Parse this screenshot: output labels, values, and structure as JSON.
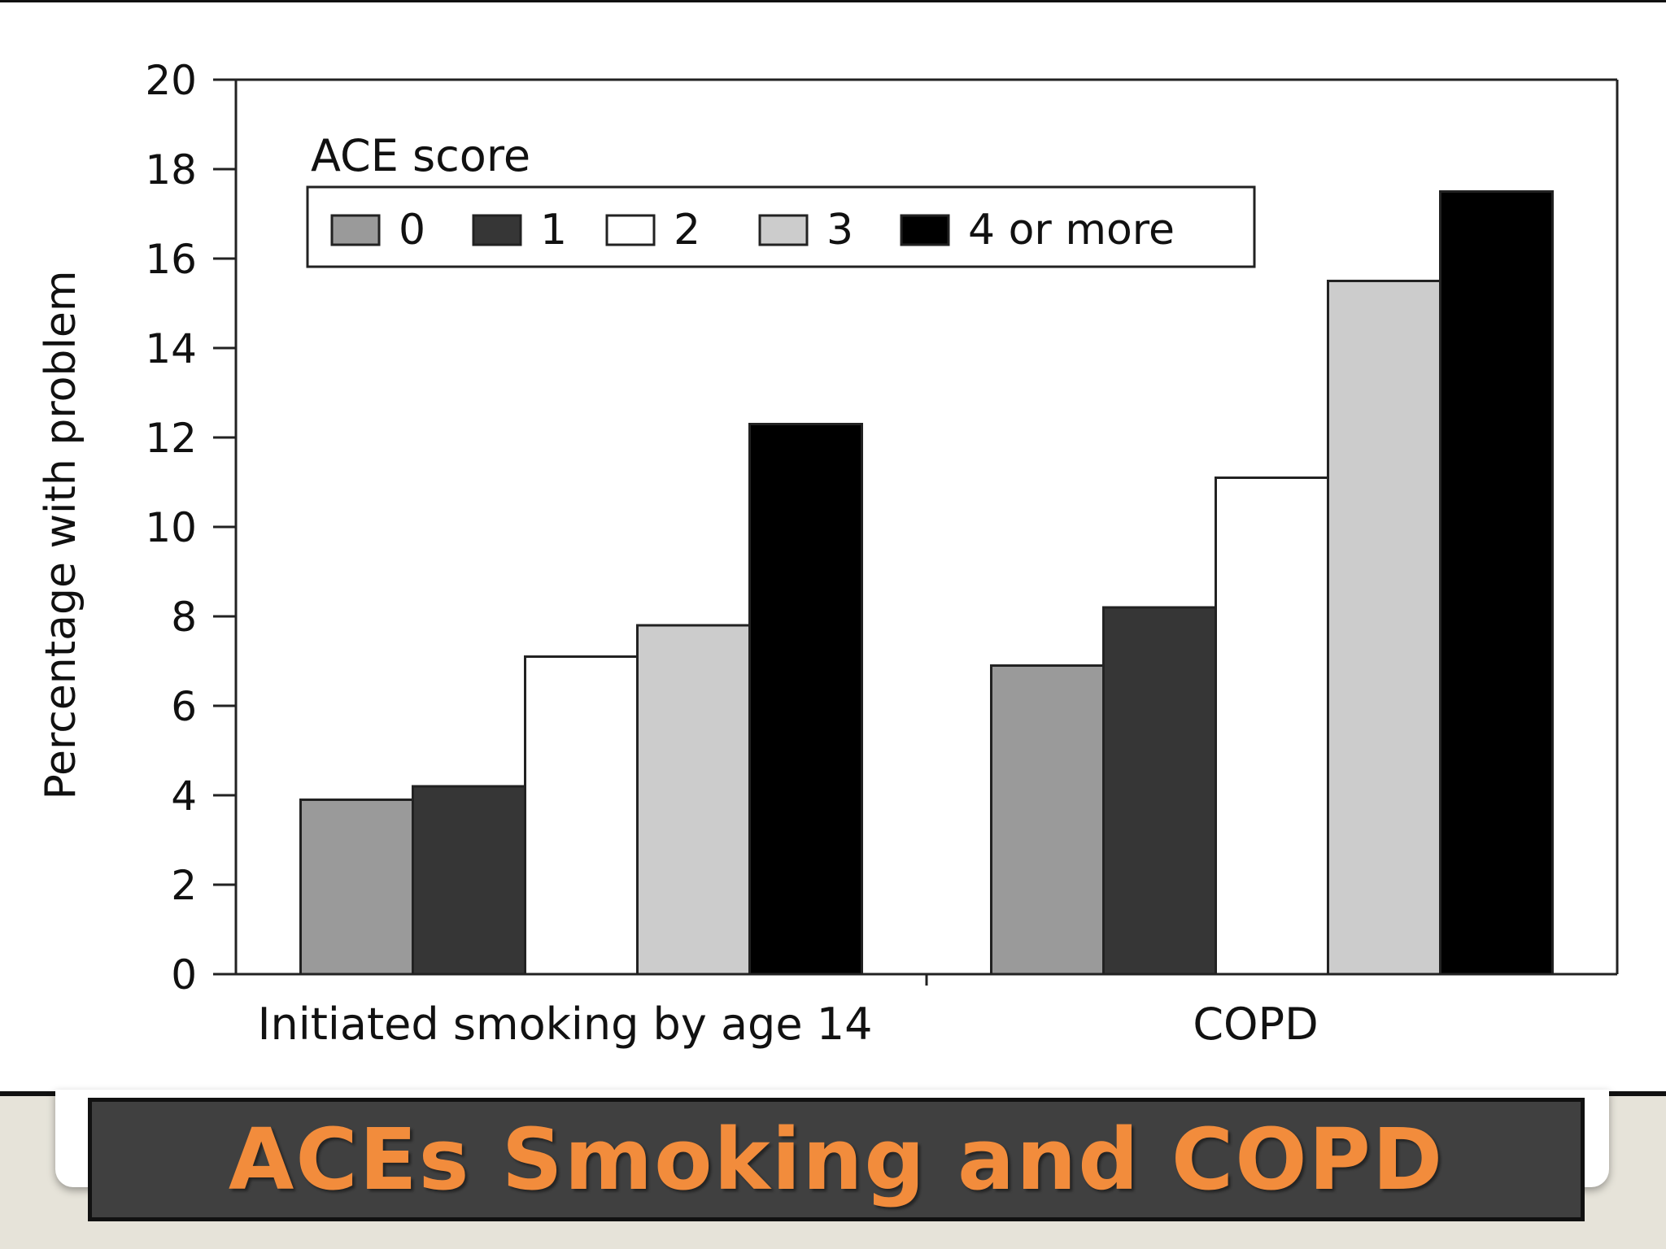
{
  "slide": {
    "title": "ACEs Smoking and COPD"
  },
  "colors": {
    "title_text": "#f28c3c",
    "banner_bg": "#404040",
    "slide_bg": "#e6e3d9"
  },
  "chart_data": {
    "type": "bar",
    "ylabel": "Percentage with problem",
    "ylim": [
      0,
      20
    ],
    "yticks": [
      "0",
      "2",
      "4",
      "6",
      "8",
      "10",
      "12",
      "14",
      "16",
      "18",
      "20"
    ],
    "categories": [
      "Initiated smoking by age 14",
      "COPD"
    ],
    "legend_title": "ACE score",
    "legend_placement": "top-left",
    "grid": false,
    "series": [
      {
        "name": "0",
        "color": "#9a9a9a",
        "values": [
          3.9,
          6.9
        ]
      },
      {
        "name": "1",
        "color": "#363636",
        "values": [
          4.2,
          8.2
        ]
      },
      {
        "name": "2",
        "color": "#ffffff",
        "values": [
          7.1,
          11.1
        ]
      },
      {
        "name": "3",
        "color": "#cccccc",
        "values": [
          7.8,
          15.5
        ]
      },
      {
        "name": "4 or more",
        "color": "#000000",
        "values": [
          12.3,
          17.5
        ]
      }
    ]
  }
}
